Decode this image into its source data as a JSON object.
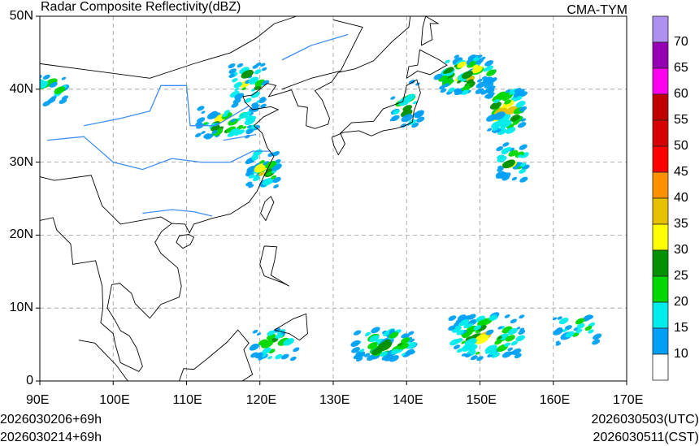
{
  "title": "Radar Composite Reflectivity(dBZ)",
  "model": "CMA-TYM",
  "init_utc": "2026030206+69h",
  "init_cst": "2026030214+69h",
  "valid_utc": "2026030503(UTC)",
  "valid_cst": "2026030511(CST)",
  "map": {
    "lon_range": [
      90,
      170
    ],
    "lat_range": [
      0,
      50
    ],
    "lon_ticks": [
      "90E",
      "100E",
      "110E",
      "120E",
      "130E",
      "140E",
      "150E",
      "160E",
      "170E"
    ],
    "lat_ticks": [
      "0",
      "10N",
      "20N",
      "30N",
      "40N",
      "50N"
    ]
  },
  "colorbar": {
    "labels": [
      "10",
      "15",
      "20",
      "25",
      "30",
      "35",
      "40",
      "45",
      "50",
      "55",
      "60",
      "65",
      "70"
    ],
    "colors": [
      "#ffffff",
      "#00a0f6",
      "#00ecec",
      "#00d800",
      "#009000",
      "#ffff00",
      "#e7c000",
      "#ff9000",
      "#ff0000",
      "#d60000",
      "#c00000",
      "#ff00f0",
      "#9600b4",
      "#ad90f0"
    ]
  },
  "echo_clusters": [
    {
      "lon": 115.5,
      "lat": 35.5,
      "dlon": 4,
      "dlat": 2,
      "max_dbz": 35,
      "n": 60
    },
    {
      "lon": 118.5,
      "lat": 40.5,
      "dlon": 2.5,
      "dlat": 3,
      "max_dbz": 30,
      "n": 40
    },
    {
      "lon": 120.5,
      "lat": 29,
      "dlon": 2,
      "dlat": 2.5,
      "max_dbz": 35,
      "n": 45
    },
    {
      "lon": 91.5,
      "lat": 40,
      "dlon": 2,
      "dlat": 2,
      "max_dbz": 25,
      "n": 20
    },
    {
      "lon": 148,
      "lat": 42,
      "dlon": 4,
      "dlat": 2.5,
      "max_dbz": 45,
      "n": 90
    },
    {
      "lon": 153.5,
      "lat": 37,
      "dlon": 2.5,
      "dlat": 3,
      "max_dbz": 40,
      "n": 60
    },
    {
      "lon": 154.5,
      "lat": 30,
      "dlon": 2,
      "dlat": 2.5,
      "max_dbz": 30,
      "n": 35
    },
    {
      "lon": 140,
      "lat": 38,
      "dlon": 2,
      "dlat": 3,
      "max_dbz": 25,
      "n": 25
    },
    {
      "lon": 137,
      "lat": 5,
      "dlon": 4,
      "dlat": 2,
      "max_dbz": 35,
      "n": 70
    },
    {
      "lon": 151,
      "lat": 6,
      "dlon": 5,
      "dlat": 3,
      "max_dbz": 35,
      "n": 90
    },
    {
      "lon": 122,
      "lat": 5,
      "dlon": 3,
      "dlat": 2,
      "max_dbz": 25,
      "n": 30
    },
    {
      "lon": 163,
      "lat": 7,
      "dlon": 3,
      "dlat": 2,
      "max_dbz": 25,
      "n": 25
    }
  ]
}
